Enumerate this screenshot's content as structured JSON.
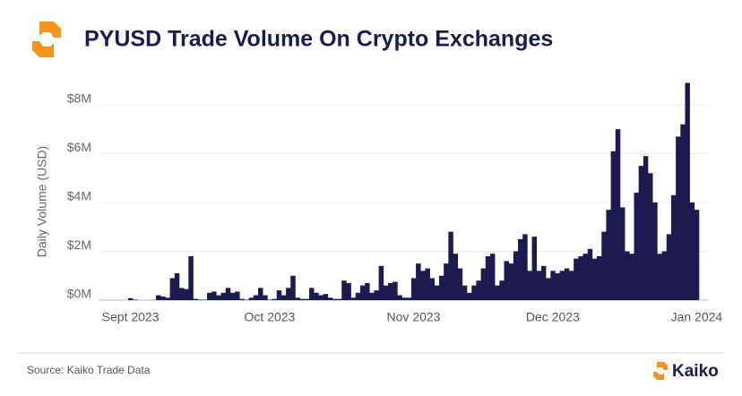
{
  "chart_data": {
    "type": "bar",
    "title": "PYUSD Trade Volume On Crypto Exchanges",
    "y_label": "Daily Volume (USD)",
    "source": "Source: Kaiko Trade Data",
    "brand": "Kaiko",
    "color": "#1c1a4f",
    "grid": true,
    "ylim": [
      0,
      9
    ],
    "yticks": [
      {
        "value": 0,
        "label": "$0M"
      },
      {
        "value": 2,
        "label": "$2M"
      },
      {
        "value": 4,
        "label": "$4M"
      },
      {
        "value": 6,
        "label": "$6M"
      },
      {
        "value": 8,
        "label": "$8M"
      }
    ],
    "categories": [
      "Sept 2023",
      null,
      null,
      null,
      null,
      null,
      null,
      null,
      null,
      null,
      null,
      null,
      null,
      null,
      null,
      null,
      null,
      null,
      null,
      null,
      null,
      null,
      null,
      null,
      null,
      null,
      null,
      null,
      null,
      null,
      "Oct 2023",
      null,
      null,
      null,
      null,
      null,
      null,
      null,
      null,
      null,
      null,
      null,
      null,
      null,
      null,
      null,
      null,
      null,
      null,
      null,
      null,
      null,
      null,
      null,
      null,
      null,
      null,
      null,
      null,
      null,
      null,
      "Nov 2023",
      null,
      null,
      null,
      null,
      null,
      null,
      null,
      null,
      null,
      null,
      null,
      null,
      null,
      null,
      null,
      null,
      null,
      null,
      null,
      null,
      null,
      null,
      null,
      null,
      null,
      null,
      null,
      null,
      null,
      "Dec 2023",
      null,
      null,
      null,
      null,
      null,
      null,
      null,
      null,
      null,
      null,
      null,
      null,
      null,
      null,
      null,
      null,
      null,
      null,
      null,
      null,
      null,
      null,
      null,
      null,
      null,
      null,
      null,
      null,
      null,
      null,
      "Jan 2024"
    ],
    "values": [
      0.08,
      0.02,
      0,
      0,
      0,
      0.01,
      0.2,
      0.15,
      0.1,
      0.9,
      1.1,
      0.5,
      0.45,
      1.8,
      0.05,
      0.02,
      0.02,
      0.3,
      0.35,
      0.2,
      0.3,
      0.5,
      0.3,
      0.35,
      0.05,
      0.02,
      0.1,
      0.2,
      0.5,
      0.2,
      0.02,
      0.05,
      0.4,
      0.2,
      0.5,
      1.0,
      0.1,
      0.05,
      0.05,
      0.5,
      0.3,
      0.2,
      0.25,
      0.1,
      0.05,
      0.05,
      0.8,
      0.7,
      0.1,
      0.3,
      0.6,
      0.7,
      0.3,
      0.4,
      1.4,
      0.6,
      0.7,
      0.75,
      0.2,
      0.1,
      0.1,
      0.9,
      1.5,
      1.2,
      1.3,
      0.9,
      0.6,
      1.0,
      1.5,
      2.8,
      1.9,
      1.3,
      0.6,
      0.3,
      0.6,
      0.8,
      1.3,
      1.8,
      1.9,
      0.6,
      0.8,
      1.6,
      1.5,
      2.0,
      2.5,
      2.7,
      1.2,
      2.6,
      1.2,
      1.4,
      0.9,
      1.2,
      1.1,
      1.2,
      1.3,
      1.2,
      1.7,
      1.8,
      1.9,
      2.1,
      1.7,
      1.8,
      2.8,
      3.7,
      6.1,
      7.0,
      3.8,
      2.0,
      1.9,
      4.4,
      5.5,
      5.9,
      5.2,
      4.0,
      1.9,
      2.0,
      2.7,
      4.3,
      6.7,
      7.2,
      8.9,
      4.0,
      3.7
    ]
  }
}
